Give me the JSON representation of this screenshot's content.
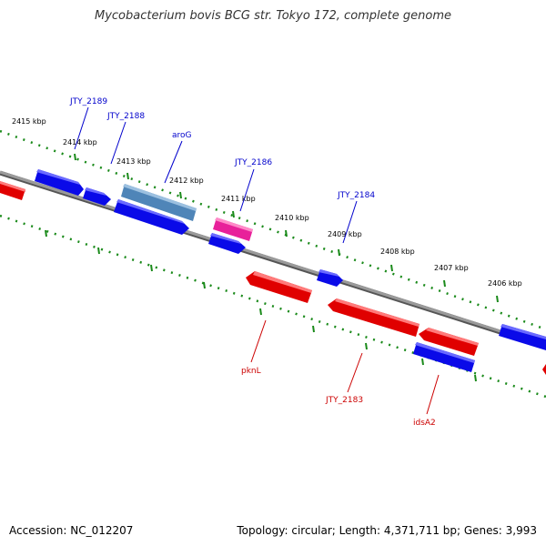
{
  "title": "Mycobacterium bovis BCG str. Tokyo 172, complete genome",
  "footer": {
    "accession": "Accession: NC_012207",
    "summary": "Topology: circular; Length: 4,371,711 bp; Genes: 3,993"
  },
  "colors": {
    "forward_gene": "#0a0ae8",
    "reverse_gene": "#e00000",
    "highlight_gene": "#4f85b8",
    "pink_gene": "#e8219a",
    "tick": "#1a8a1a",
    "backbone": "#808080",
    "forward_label": "#0000cc",
    "reverse_label": "#cc0000"
  },
  "scale_ticks": [
    "2415 kbp",
    "2414 kbp",
    "2413 kbp",
    "2412 kbp",
    "2411 kbp",
    "2410 kbp",
    "2409 kbp",
    "2408 kbp",
    "2407 kbp",
    "2406 kbp"
  ],
  "gene_labels": {
    "forward": [
      "JTY_2189",
      "JTY_2188",
      "aroG",
      "JTY_2186",
      "JTY_2184"
    ],
    "reverse": [
      "pknL",
      "JTY_2183",
      "idsA2"
    ]
  }
}
